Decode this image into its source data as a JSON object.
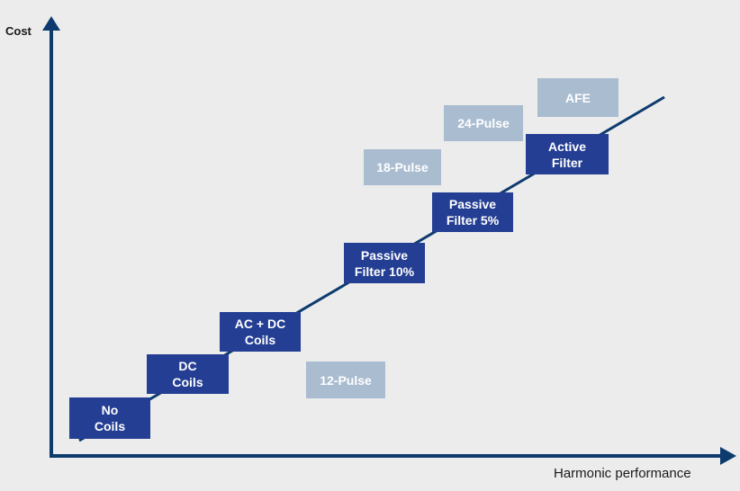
{
  "axes": {
    "y_label": "Cost",
    "x_label": "Harmonic performance"
  },
  "colors": {
    "axis": "#0d3b6e",
    "trend_line": "#0d3b6e",
    "dark_box": "#243e93",
    "light_box": "#a9bcd0",
    "background": "#ececed"
  },
  "boxes": [
    {
      "id": "no-coils",
      "label": "No\nCoils",
      "style": "dark"
    },
    {
      "id": "dc-coils",
      "label": "DC\nCoils",
      "style": "dark"
    },
    {
      "id": "ac-dc-coils",
      "label": "AC + DC\nCoils",
      "style": "dark"
    },
    {
      "id": "passive-filter-10",
      "label": "Passive\nFilter 10%",
      "style": "dark"
    },
    {
      "id": "passive-filter-5",
      "label": "Passive\nFilter 5%",
      "style": "dark"
    },
    {
      "id": "active-filter",
      "label": "Active\nFilter",
      "style": "dark"
    },
    {
      "id": "12-pulse",
      "label": "12-Pulse",
      "style": "light"
    },
    {
      "id": "18-pulse",
      "label": "18-Pulse",
      "style": "light"
    },
    {
      "id": "24-pulse",
      "label": "24-Pulse",
      "style": "light"
    },
    {
      "id": "afe",
      "label": "AFE",
      "style": "light"
    }
  ]
}
